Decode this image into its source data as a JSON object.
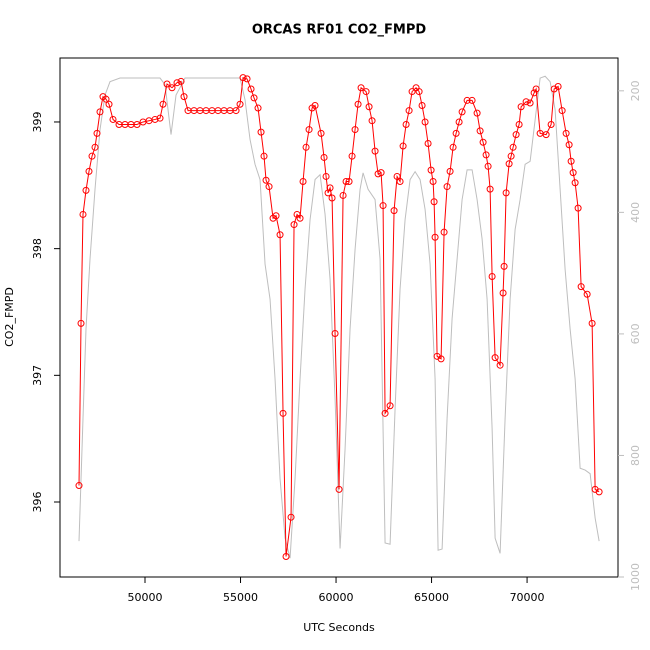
{
  "chart_data": {
    "type": "line",
    "title": "ORCAS RF01 CO2_FMPD",
    "xlabel": "UTC Seconds",
    "ylabel": "CO2_FMPD",
    "xlim": [
      45550,
      74760
    ],
    "xticks": [
      50000,
      55000,
      60000,
      65000,
      70000
    ],
    "ylim": [
      395.408,
      399.505
    ],
    "yticks": [
      396,
      397,
      398,
      399
    ],
    "y2lim": [
      1000,
      146
    ],
    "y2ticks": [
      200,
      400,
      600,
      800,
      1000
    ],
    "series": [
      {
        "color": "#ff0000",
        "markers": true,
        "x": [
          46545,
          46650,
          46754,
          46911,
          47068,
          47226,
          47383,
          47487,
          47644,
          47801,
          47959,
          48116,
          48325,
          48639,
          48953,
          49268,
          49582,
          49896,
          50210,
          50524,
          50786,
          50943,
          51153,
          51414,
          51676,
          51886,
          52043,
          52252,
          52566,
          52880,
          53195,
          53509,
          53823,
          54137,
          54451,
          54765,
          54975,
          55132,
          55341,
          55551,
          55708,
          55917,
          56074,
          56231,
          56336,
          56493,
          56703,
          56860,
          57069,
          57226,
          57383,
          57645,
          57802,
          57959,
          58116,
          58273,
          58431,
          58588,
          58745,
          58902,
          59216,
          59373,
          59478,
          59582,
          59687,
          59792,
          59949,
          60158,
          60368,
          60525,
          60682,
          60839,
          60996,
          61153,
          61310,
          61572,
          61729,
          61886,
          62043,
          62200,
          62358,
          62462,
          62567,
          62829,
          63038,
          63195,
          63352,
          63510,
          63667,
          63824,
          63981,
          64190,
          64347,
          64504,
          64661,
          64818,
          64976,
          65080,
          65133,
          65185,
          65290,
          65499,
          65656,
          65813,
          65970,
          66127,
          66285,
          66442,
          66599,
          66861,
          67122,
          67384,
          67541,
          67698,
          67855,
          67960,
          68065,
          68170,
          68327,
          68588,
          68745,
          68798,
          68903,
          69060,
          69165,
          69269,
          69426,
          69583,
          69688,
          69950,
          70159,
          70369,
          70473,
          70683,
          70997,
          71259,
          71416,
          71625,
          71835,
          72044,
          72201,
          72306,
          72411,
          72515,
          72672,
          72830,
          73144,
          73405,
          73563,
          73772
        ],
        "values": [
          396.13,
          397.41,
          398.27,
          398.46,
          398.61,
          398.73,
          398.8,
          398.91,
          399.08,
          399.2,
          399.18,
          399.14,
          399.02,
          398.98,
          398.98,
          398.98,
          398.98,
          399.0,
          399.01,
          399.02,
          399.03,
          399.14,
          399.3,
          399.27,
          399.31,
          399.32,
          399.2,
          399.09,
          399.09,
          399.09,
          399.09,
          399.09,
          399.09,
          399.09,
          399.09,
          399.09,
          399.14,
          399.35,
          399.34,
          399.26,
          399.19,
          399.11,
          398.92,
          398.73,
          398.54,
          398.49,
          398.24,
          398.26,
          398.11,
          396.7,
          395.57,
          395.88,
          398.19,
          398.27,
          398.24,
          398.53,
          398.8,
          398.94,
          399.11,
          399.13,
          398.91,
          398.72,
          398.57,
          398.44,
          398.48,
          398.4,
          397.33,
          396.1,
          398.42,
          398.53,
          398.53,
          398.73,
          398.94,
          399.14,
          399.27,
          399.24,
          399.12,
          399.01,
          398.77,
          398.59,
          398.6,
          398.34,
          396.7,
          396.76,
          398.3,
          398.57,
          398.53,
          398.81,
          398.98,
          399.09,
          399.24,
          399.27,
          399.24,
          399.13,
          399.0,
          398.83,
          398.62,
          398.53,
          398.37,
          398.09,
          397.15,
          397.13,
          398.13,
          398.49,
          398.61,
          398.8,
          398.91,
          399.0,
          399.08,
          399.17,
          399.17,
          399.07,
          398.93,
          398.84,
          398.74,
          398.65,
          398.47,
          397.78,
          397.14,
          397.08,
          397.65,
          397.86,
          398.44,
          398.67,
          398.73,
          398.8,
          398.9,
          398.98,
          399.12,
          399.16,
          399.15,
          399.23,
          399.26,
          398.91,
          398.9,
          398.98,
          399.26,
          399.28,
          399.09,
          398.91,
          398.82,
          398.69,
          398.6,
          398.52,
          398.32,
          397.7,
          397.64,
          397.41,
          396.1,
          396.08
        ]
      },
      {
        "color": "#bebebe",
        "axis": "y2",
        "markers": false,
        "x": [
          46545,
          46754,
          46911,
          47121,
          47383,
          47644,
          47906,
          48168,
          48692,
          49739,
          50786,
          51048,
          51362,
          51624,
          52095,
          54975,
          55237,
          55498,
          55760,
          56022,
          56284,
          56546,
          56807,
          57069,
          57331,
          57593,
          57855,
          58116,
          58378,
          58640,
          58902,
          59164,
          59425,
          59687,
          59949,
          60211,
          60473,
          60734,
          60996,
          61258,
          61415,
          61677,
          62043,
          62305,
          62567,
          62829,
          63091,
          63352,
          63614,
          63876,
          64138,
          64400,
          64661,
          64923,
          65185,
          65342,
          65552,
          65813,
          66075,
          66337,
          66599,
          66861,
          67122,
          67384,
          67646,
          67908,
          68170,
          68327,
          68588,
          68850,
          69112,
          69374,
          69636,
          69897,
          70159,
          70421,
          70683,
          70945,
          71207,
          71468,
          71730,
          71992,
          72254,
          72515,
          72777,
          73039,
          73301,
          73563,
          73772
        ],
        "values": [
          941,
          739,
          592,
          477,
          362,
          264,
          207,
          185,
          179,
          179,
          179,
          190,
          272,
          207,
          179,
          179,
          215,
          280,
          321,
          346,
          485,
          543,
          674,
          838,
          936,
          969,
          838,
          674,
          526,
          412,
          346,
          338,
          403,
          510,
          707,
          953,
          789,
          592,
          461,
          362,
          335,
          362,
          379,
          477,
          944,
          946,
          723,
          526,
          412,
          346,
          333,
          346,
          395,
          485,
          674,
          956,
          954,
          739,
          575,
          477,
          379,
          330,
          330,
          379,
          444,
          543,
          756,
          936,
          961,
          739,
          543,
          428,
          379,
          321,
          316,
          248,
          179,
          176,
          185,
          231,
          362,
          494,
          592,
          674,
          821,
          824,
          830,
          903,
          941
        ]
      }
    ]
  }
}
